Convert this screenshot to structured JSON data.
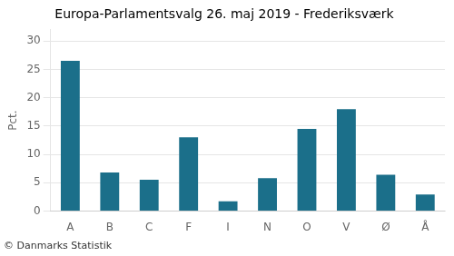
{
  "chart_data": {
    "type": "bar",
    "title": "Europa-Parlamentsvalg 26. maj 2019 - Frederiksværk",
    "categories": [
      "A",
      "B",
      "C",
      "F",
      "I",
      "N",
      "O",
      "V",
      "Ø",
      "Å"
    ],
    "values": [
      26.5,
      6.8,
      5.5,
      13.0,
      1.7,
      5.8,
      14.5,
      18.0,
      6.4,
      2.9
    ],
    "color": "#1b6f8a",
    "ylabel": "Pct.",
    "footer": "© Danmarks Statistik",
    "ylim": [
      0,
      32
    ],
    "yticks": [
      0,
      5,
      10,
      15,
      20,
      25,
      30
    ],
    "grid": true
  }
}
